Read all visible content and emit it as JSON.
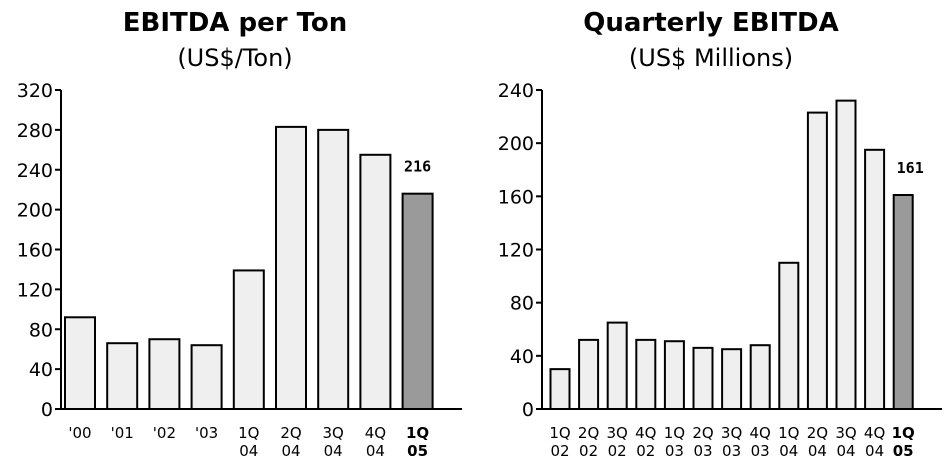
{
  "colors": {
    "bar_fill": "#efefef",
    "highlight_fill": "#9a9a9a",
    "stroke": "#000000"
  },
  "chart_data": [
    {
      "type": "bar",
      "title": "EBITDA per Ton",
      "subtitle": "(US$/Ton)",
      "categories": [
        "'00",
        "'01",
        "'02",
        "'03",
        "1Q 04",
        "2Q 04",
        "3Q 04",
        "4Q 04",
        "1Q 05"
      ],
      "values": [
        92,
        66,
        70,
        64,
        139,
        283,
        280,
        255,
        216
      ],
      "highlight_index": 8,
      "data_labels": [
        {
          "index": 8,
          "text": "216"
        }
      ],
      "yticks": [
        0,
        40,
        80,
        120,
        160,
        200,
        240,
        280,
        320
      ],
      "ylim": [
        0,
        320
      ],
      "grid": false,
      "legend": "none"
    },
    {
      "type": "bar",
      "title": "Quarterly EBITDA",
      "subtitle": "(US$ Millions)",
      "categories": [
        "1Q 02",
        "2Q 02",
        "3Q 02",
        "4Q 02",
        "1Q 03",
        "2Q 03",
        "3Q 03",
        "4Q 03",
        "1Q 04",
        "2Q 04",
        "3Q 04",
        "4Q 04",
        "1Q 05"
      ],
      "values": [
        30,
        52,
        65,
        52,
        51,
        46,
        45,
        48,
        110,
        223,
        232,
        195,
        161
      ],
      "highlight_index": 12,
      "data_labels": [
        {
          "index": 12,
          "text": "161"
        }
      ],
      "yticks": [
        0,
        40,
        80,
        120,
        160,
        200,
        240
      ],
      "ylim": [
        0,
        240
      ],
      "grid": false,
      "legend": "none"
    }
  ]
}
